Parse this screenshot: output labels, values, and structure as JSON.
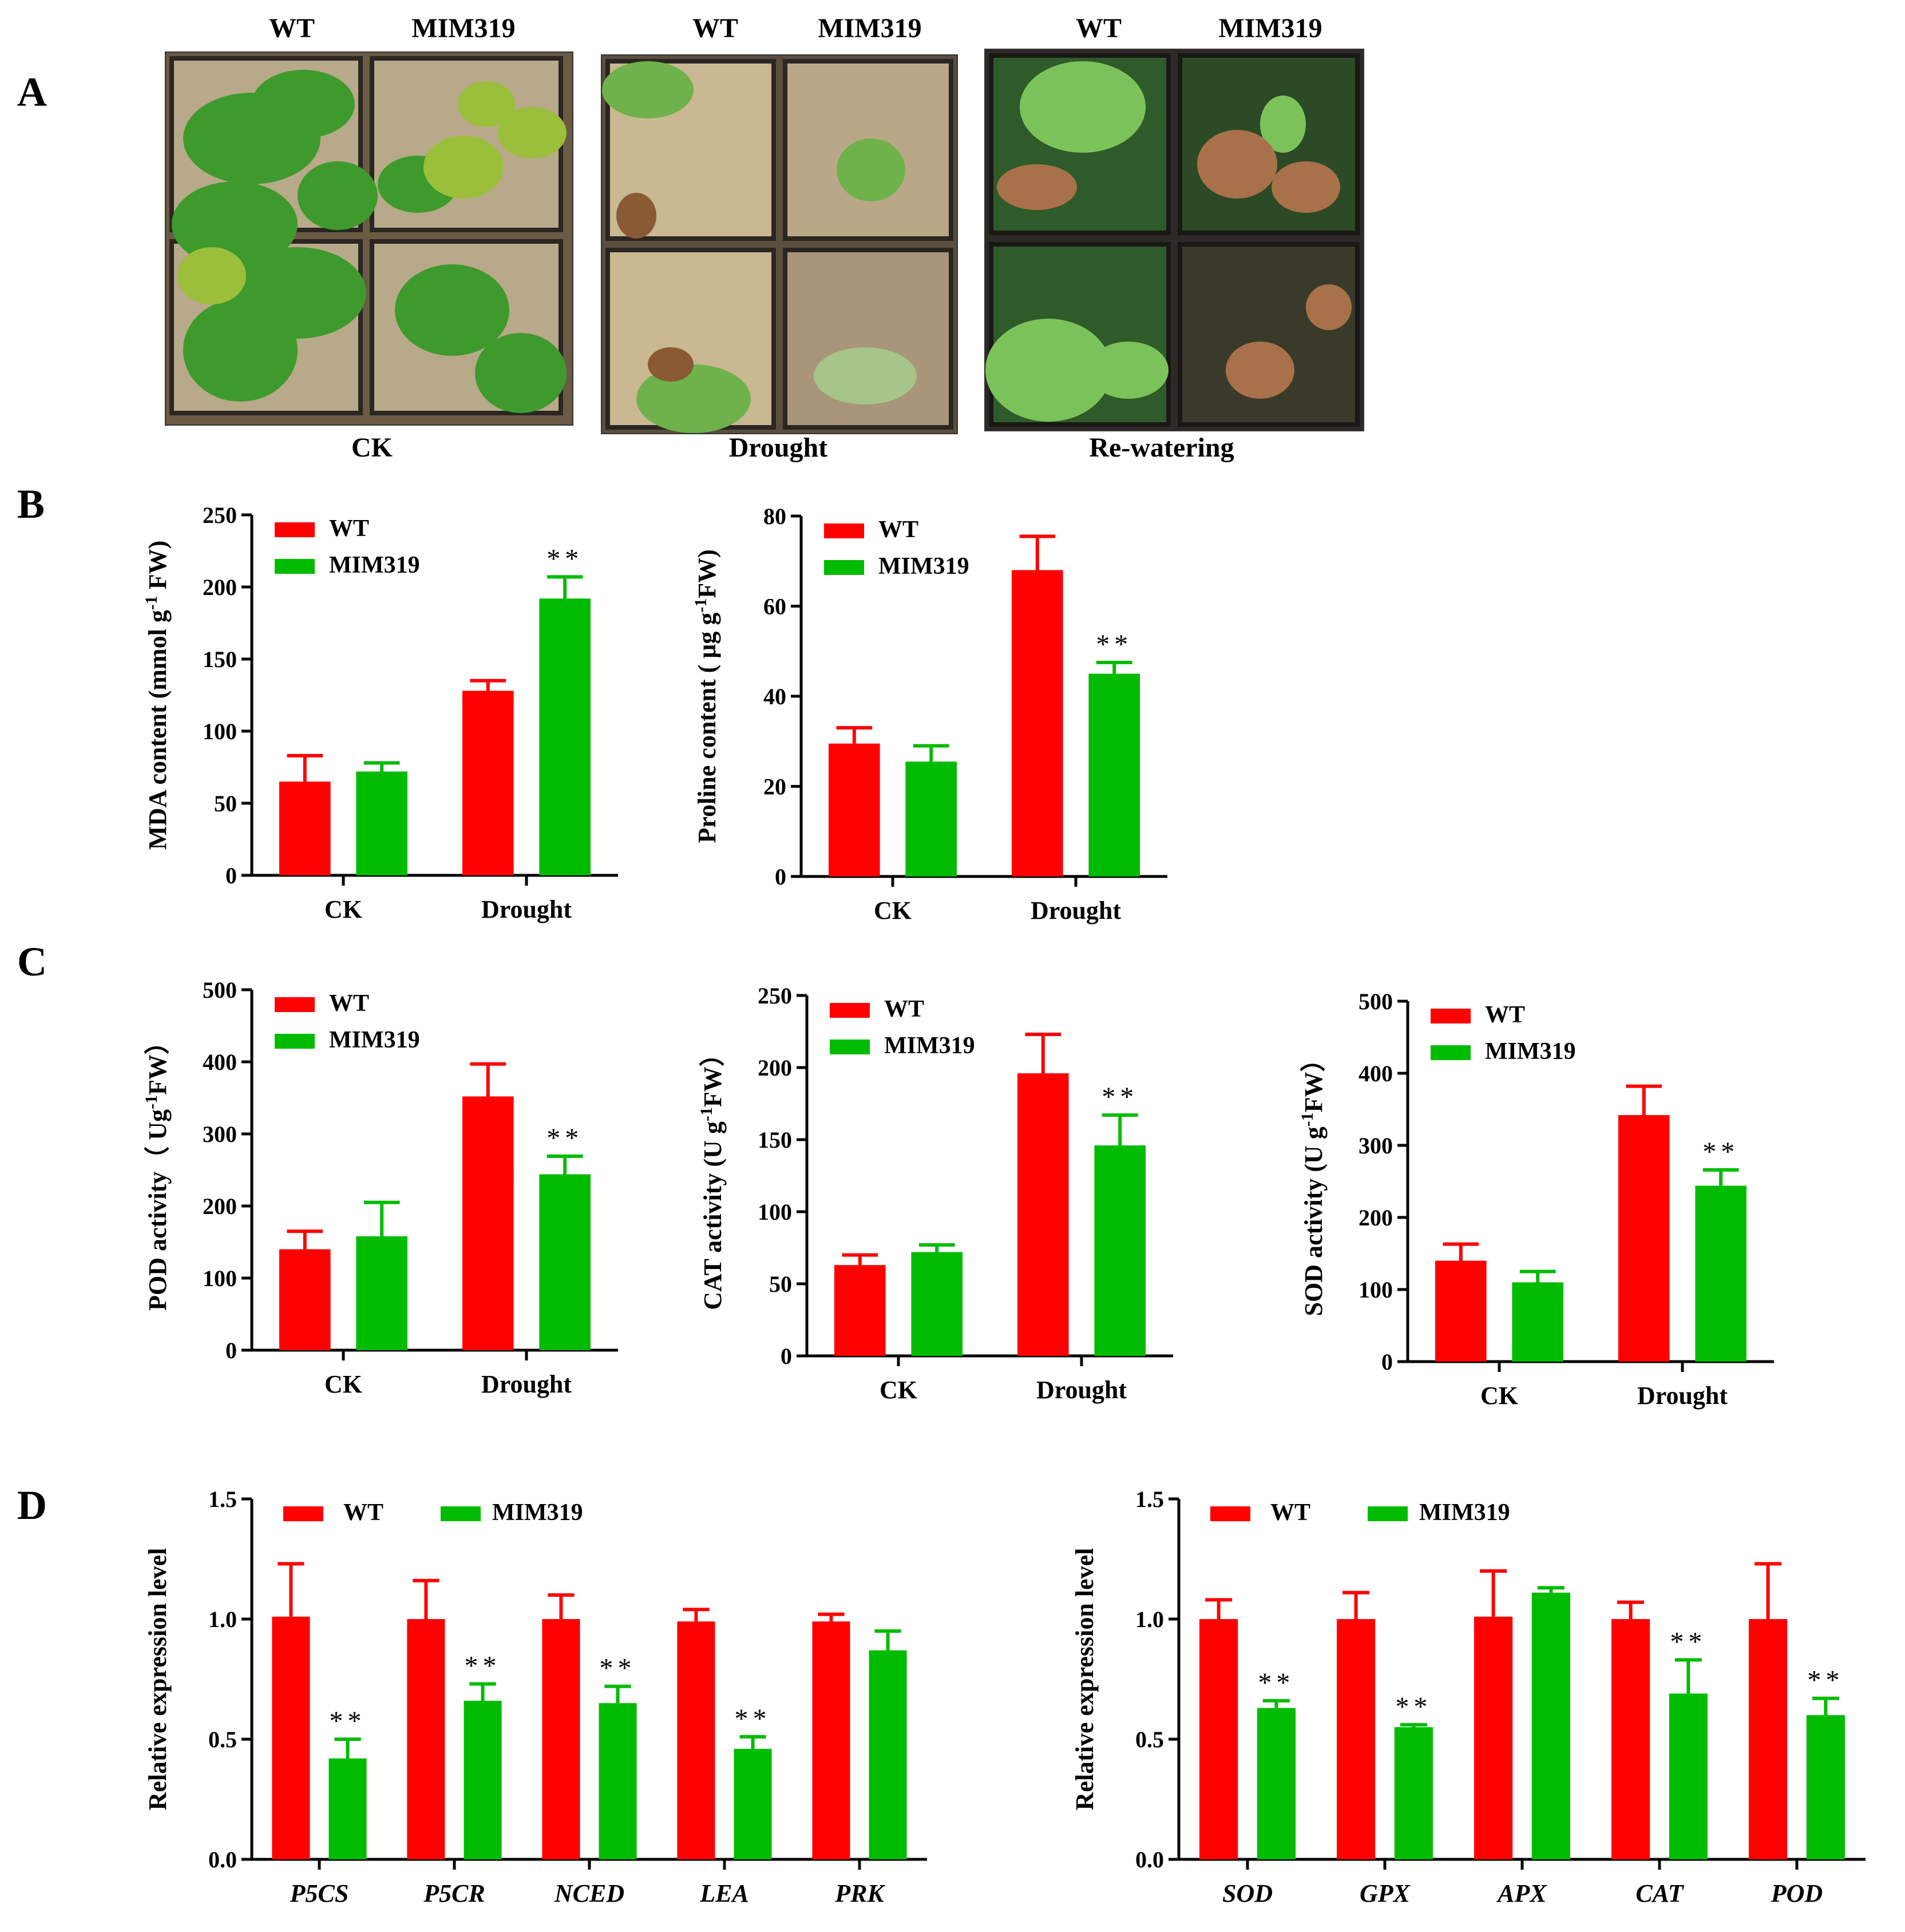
{
  "panels": {
    "A": "A",
    "B": "B",
    "C": "C",
    "D": "D"
  },
  "photos": [
    {
      "left": "WT",
      "right": "MIM319",
      "caption": "CK"
    },
    {
      "left": "WT",
      "right": "MIM319",
      "caption": "Drought"
    },
    {
      "left": "WT",
      "right": "MIM319",
      "caption": "Re-watering"
    }
  ],
  "colors": {
    "wt": "#ff0000",
    "mim": "#00bb00",
    "axis": "#000000"
  },
  "chart_data": [
    {
      "id": "mda",
      "type": "bar",
      "ylabel": "MDA content (mmol g",
      "ylabel_sup": "-1",
      "ylabel_tail": " FW)",
      "ylim": [
        0,
        250
      ],
      "yticks": [
        0,
        50,
        100,
        150,
        200,
        250
      ],
      "categories": [
        "CK",
        "Drought"
      ],
      "series": [
        {
          "name": "WT",
          "values": [
            65,
            128
          ],
          "err": [
            18,
            7
          ]
        },
        {
          "name": "MIM319",
          "values": [
            72,
            192
          ],
          "err": [
            6,
            15
          ]
        }
      ],
      "sig": [
        [
          "",
          ""
        ],
        [
          "",
          "**"
        ]
      ],
      "legend": [
        "WT",
        "MIM319"
      ]
    },
    {
      "id": "proline",
      "type": "bar",
      "ylabel": "Proline content (  μg g",
      "ylabel_sup": "-1",
      "ylabel_tail": "FW)",
      "ylim": [
        0,
        80
      ],
      "yticks": [
        0,
        20,
        40,
        60,
        80
      ],
      "categories": [
        "CK",
        "Drought"
      ],
      "series": [
        {
          "name": "WT",
          "values": [
            29.5,
            68
          ],
          "err": [
            3.5,
            7.5
          ]
        },
        {
          "name": "MIM319",
          "values": [
            25.5,
            45
          ],
          "err": [
            3.5,
            2.5
          ]
        }
      ],
      "sig": [
        [
          "",
          ""
        ],
        [
          "",
          "**"
        ]
      ],
      "legend": [
        "WT",
        "MIM319"
      ]
    },
    {
      "id": "pod",
      "type": "bar",
      "ylabel": "POD activity（ Ug",
      "ylabel_sup": "-1",
      "ylabel_tail": "FW）",
      "ylim": [
        0,
        500
      ],
      "yticks": [
        0,
        100,
        200,
        300,
        400,
        500
      ],
      "categories": [
        "CK",
        "Drought"
      ],
      "series": [
        {
          "name": "WT",
          "values": [
            140,
            352
          ],
          "err": [
            25,
            45
          ]
        },
        {
          "name": "MIM319",
          "values": [
            158,
            244
          ],
          "err": [
            47,
            25
          ]
        }
      ],
      "sig": [
        [
          "",
          ""
        ],
        [
          "",
          "**"
        ]
      ],
      "legend": [
        "WT",
        "MIM319"
      ]
    },
    {
      "id": "cat",
      "type": "bar",
      "ylabel": "CAT activity (U g",
      "ylabel_sup": "-1",
      "ylabel_tail": "FW）",
      "ylim": [
        0,
        250
      ],
      "yticks": [
        0,
        50,
        100,
        150,
        200,
        250
      ],
      "categories": [
        "CK",
        "Drought"
      ],
      "series": [
        {
          "name": "WT",
          "values": [
            63,
            196
          ],
          "err": [
            7,
            27
          ]
        },
        {
          "name": "MIM319",
          "values": [
            72,
            146
          ],
          "err": [
            5,
            21
          ]
        }
      ],
      "sig": [
        [
          "",
          ""
        ],
        [
          "",
          "**"
        ]
      ],
      "legend": [
        "WT",
        "MIM319"
      ]
    },
    {
      "id": "sod",
      "type": "bar",
      "ylabel": "SOD activity (U g",
      "ylabel_sup": "-1",
      "ylabel_tail": "FW）",
      "ylim": [
        0,
        500
      ],
      "yticks": [
        0,
        100,
        200,
        300,
        400,
        500
      ],
      "categories": [
        "CK",
        "Drought"
      ],
      "series": [
        {
          "name": "WT",
          "values": [
            140,
            342
          ],
          "err": [
            23,
            40
          ]
        },
        {
          "name": "MIM319",
          "values": [
            110,
            244
          ],
          "err": [
            15,
            22
          ]
        }
      ],
      "sig": [
        [
          "",
          ""
        ],
        [
          "",
          "**"
        ]
      ],
      "legend": [
        "WT",
        "MIM319"
      ]
    },
    {
      "id": "expr1",
      "type": "bar",
      "ylabel": "Relative expression level",
      "ylabel_sup": "",
      "ylabel_tail": "",
      "ylim": [
        0,
        1.5
      ],
      "yticks": [
        "0.0",
        "0.5",
        "1.0",
        "1.5"
      ],
      "categories": [
        "P5CS",
        "P5CR",
        "NCED",
        "LEA",
        "PRK"
      ],
      "series": [
        {
          "name": "WT",
          "values": [
            1.01,
            1.0,
            1.0,
            0.99,
            0.99
          ],
          "err": [
            0.22,
            0.16,
            0.1,
            0.05,
            0.03
          ]
        },
        {
          "name": "MIM319",
          "values": [
            0.42,
            0.66,
            0.65,
            0.46,
            0.87
          ],
          "err": [
            0.08,
            0.07,
            0.07,
            0.05,
            0.08
          ]
        }
      ],
      "sig": [
        [
          "",
          "**"
        ],
        [
          "",
          "**"
        ],
        [
          "",
          "**"
        ],
        [
          "",
          "**"
        ],
        [
          "",
          ""
        ]
      ],
      "legend": [
        "WT",
        "MIM319"
      ]
    },
    {
      "id": "expr2",
      "type": "bar",
      "ylabel": "Relative expression level",
      "ylabel_sup": "",
      "ylabel_tail": "",
      "ylim": [
        0,
        1.5
      ],
      "yticks": [
        "0.0",
        "0.5",
        "1.0",
        "1.5"
      ],
      "categories": [
        "SOD",
        "GPX",
        "APX",
        "CAT",
        "POD"
      ],
      "series": [
        {
          "name": "WT",
          "values": [
            1.0,
            1.0,
            1.01,
            1.0,
            1.0
          ],
          "err": [
            0.08,
            0.11,
            0.19,
            0.07,
            0.23
          ]
        },
        {
          "name": "MIM319",
          "values": [
            0.63,
            0.55,
            1.11,
            0.69,
            0.6
          ],
          "err": [
            0.03,
            0.01,
            0.02,
            0.14,
            0.07
          ]
        }
      ],
      "sig": [
        [
          "",
          "**"
        ],
        [
          "",
          "**"
        ],
        [
          "",
          ""
        ],
        [
          "",
          "**"
        ],
        [
          "",
          "**"
        ]
      ],
      "legend": [
        "WT",
        "MIM319"
      ]
    }
  ]
}
